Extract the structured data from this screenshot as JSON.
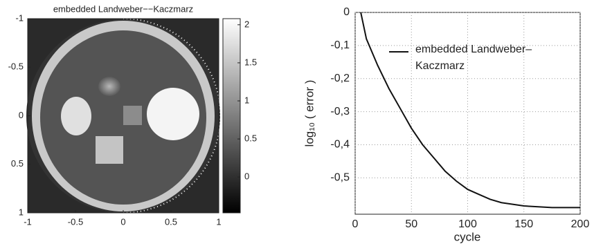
{
  "chart_data": [
    {
      "type": "image",
      "title": "embedded Landweber−−Kaczmarz",
      "xlim": [
        -1,
        1
      ],
      "xticks": [
        -1,
        -0.5,
        0,
        0.5,
        1
      ],
      "ylim": [
        -1,
        1
      ],
      "yticks": [
        -1,
        -0.5,
        0,
        0.5,
        1
      ],
      "clim": [
        -0.47,
        2.08
      ],
      "cticks": [
        0,
        0.5,
        1,
        1.5,
        2
      ]
    },
    {
      "type": "line",
      "xlabel": "cycle",
      "ylabel": "log₁₀ ( error )",
      "grid": true,
      "x": [
        5,
        10,
        20,
        30,
        40,
        50,
        60,
        70,
        80,
        90,
        100,
        110,
        120,
        130,
        140,
        150,
        175,
        200
      ],
      "series": [
        {
          "name": "embedded Landweber–Kaczmarz",
          "color": "#111111",
          "values": [
            0,
            -0.08,
            -0.16,
            -0.23,
            -0.29,
            -0.35,
            -0.4,
            -0.44,
            -0.48,
            -0.51,
            -0.535,
            -0.55,
            -0.565,
            -0.575,
            -0.58,
            -0.585,
            -0.59,
            -0.59
          ]
        }
      ],
      "xlim": [
        0,
        200
      ],
      "xticks": [
        0,
        50,
        100,
        150,
        200
      ],
      "ylim": [
        -0.61,
        0
      ],
      "yticks": [
        0,
        {
          "value": -0.1,
          "label": "-0,1"
        },
        {
          "value": -0.2,
          "label": "-0,2"
        },
        {
          "value": -0.3,
          "label": "-0,3"
        },
        {
          "value": -0.4,
          "label": "-0,4"
        },
        {
          "value": -0.5,
          "label": "-0,5"
        }
      ]
    }
  ]
}
